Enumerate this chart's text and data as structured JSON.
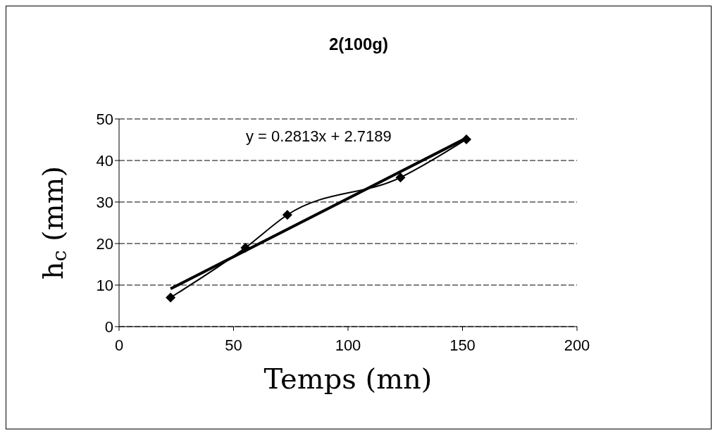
{
  "chart_data": {
    "type": "line",
    "title": "2(100g)",
    "xlabel": "Temps (mn)",
    "ylabel": "h$_{c}$ (mm)",
    "x": [
      22.5,
      55.2,
      73.5,
      122.9,
      151.7
    ],
    "series": [
      {
        "color": "#000000",
        "values": [
          7.0,
          19.0,
          26.9,
          35.9,
          45.1
        ],
        "marker": "diamond"
      },
      {
        "type": "line",
        "color": "#000000",
        "x": [
          22.5,
          151.7
        ],
        "values": [
          9.1,
          45.4
        ],
        "marker": "none"
      }
    ],
    "annotations": [
      "y = 0.2813x + 2.7189"
    ],
    "xlim": [
      0,
      200
    ],
    "xticks": [
      0,
      50,
      100,
      150,
      200
    ],
    "ylim": [
      0,
      50
    ],
    "yticks": [
      0,
      10,
      20,
      30,
      40,
      50
    ],
    "grid": "y"
  }
}
